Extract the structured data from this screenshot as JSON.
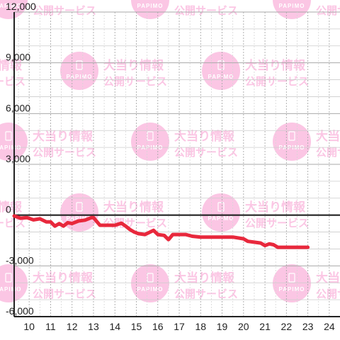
{
  "chart_data": {
    "type": "line",
    "title": "",
    "xlabel": "",
    "ylabel": "",
    "xlim": [
      9.3,
      24.5
    ],
    "ylim": [
      -6000,
      12000
    ],
    "x_ticks": [
      10,
      11,
      12,
      13,
      14,
      15,
      16,
      17,
      18,
      19,
      20,
      21,
      22,
      23,
      24
    ],
    "y_ticks": [
      {
        "value": -6000,
        "label": "-6,000"
      },
      {
        "value": -3000,
        "label": "-3,000"
      },
      {
        "value": 0,
        "label": "0"
      },
      {
        "value": 3000,
        "label": "3,000"
      },
      {
        "value": 6000,
        "label": "6,000"
      },
      {
        "value": 9000,
        "label": "9,000"
      },
      {
        "value": 12000,
        "label": "12,000"
      }
    ],
    "grid": true,
    "colors": {
      "line": "#e8283c",
      "axis": "#222222",
      "grid": "#cccccc",
      "watermark": "#fbc6e4"
    },
    "series": [
      {
        "name": "",
        "x": [
          9.3,
          9.6,
          9.9,
          10.2,
          10.5,
          10.8,
          11.0,
          11.2,
          11.4,
          11.6,
          11.8,
          12.0,
          12.3,
          12.6,
          12.9,
          13.0,
          13.3,
          13.6,
          14.0,
          14.3,
          14.5,
          14.7,
          14.9,
          15.1,
          15.4,
          15.8,
          16.0,
          16.3,
          16.5,
          16.7,
          17.0,
          17.3,
          17.6,
          18.0,
          18.5,
          19.0,
          19.5,
          20.0,
          20.2,
          20.5,
          20.8,
          21.0,
          21.2,
          21.4,
          21.6,
          22.0,
          22.5,
          23.0
        ],
        "y": [
          -50,
          -180,
          -150,
          -280,
          -220,
          -400,
          -400,
          -650,
          -500,
          -650,
          -450,
          -500,
          -350,
          -300,
          -150,
          -150,
          -600,
          -600,
          -600,
          -480,
          -650,
          -850,
          -1000,
          -1100,
          -1150,
          -900,
          -1150,
          -1200,
          -1450,
          -1150,
          -1150,
          -1150,
          -1250,
          -1300,
          -1300,
          -1300,
          -1300,
          -1400,
          -1550,
          -1600,
          -1650,
          -1800,
          -1700,
          -1750,
          -1900,
          -1900,
          -1900,
          -1900
        ]
      }
    ]
  },
  "watermark": {
    "logo_text": "PAPIMO",
    "line1": "大当り情報",
    "line2": "公開サービス"
  }
}
